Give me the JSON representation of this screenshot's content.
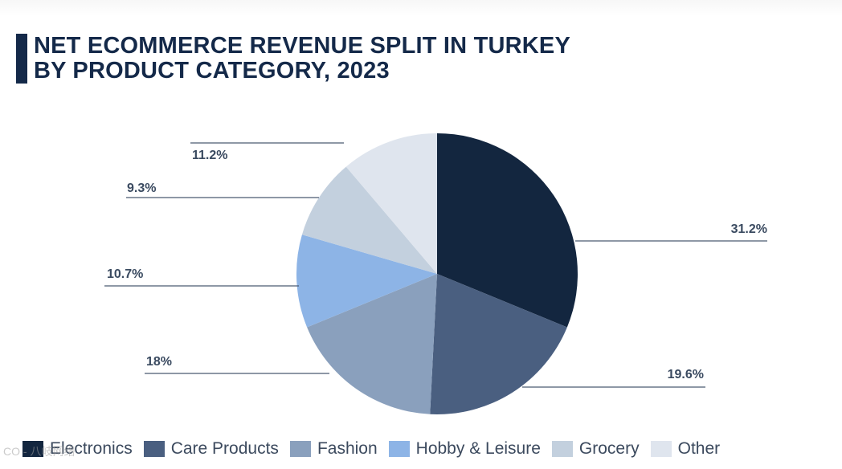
{
  "title": "NET ECOMMERCE REVENUE SPLIT IN TURKEY\nBY PRODUCT CATEGORY, 2023",
  "colors": {
    "title": "#142949",
    "label_text": "#3a4a60",
    "leader_line": "#4a5a72"
  },
  "chart_data": {
    "type": "pie",
    "title": "NET ECOMMERCE REVENUE SPLIT IN TURKEY BY PRODUCT CATEGORY, 2023",
    "start_angle": "12 o'clock",
    "direction": "clockwise",
    "legend_position": "bottom",
    "slices": [
      {
        "name": "Electronics",
        "value": 31.2,
        "label": "31.2%",
        "color": "#13263f",
        "label_side": "right"
      },
      {
        "name": "Care Products",
        "value": 19.6,
        "label": "19.6%",
        "color": "#4a5f80",
        "label_side": "right"
      },
      {
        "name": "Fashion",
        "value": 18,
        "label": "18%",
        "color": "#8aa0bd",
        "label_side": "left"
      },
      {
        "name": "Hobby & Leisure",
        "value": 10.7,
        "label": "10.7%",
        "color": "#8db4e6",
        "label_side": "left"
      },
      {
        "name": "Grocery",
        "value": 9.3,
        "label": "9.3%",
        "color": "#c3d0de",
        "label_side": "left"
      },
      {
        "name": "Other",
        "value": 11.2,
        "label": "11.2%",
        "color": "#dfe5ee",
        "label_side": "left"
      }
    ]
  },
  "watermark": "CO - 八岐网络"
}
